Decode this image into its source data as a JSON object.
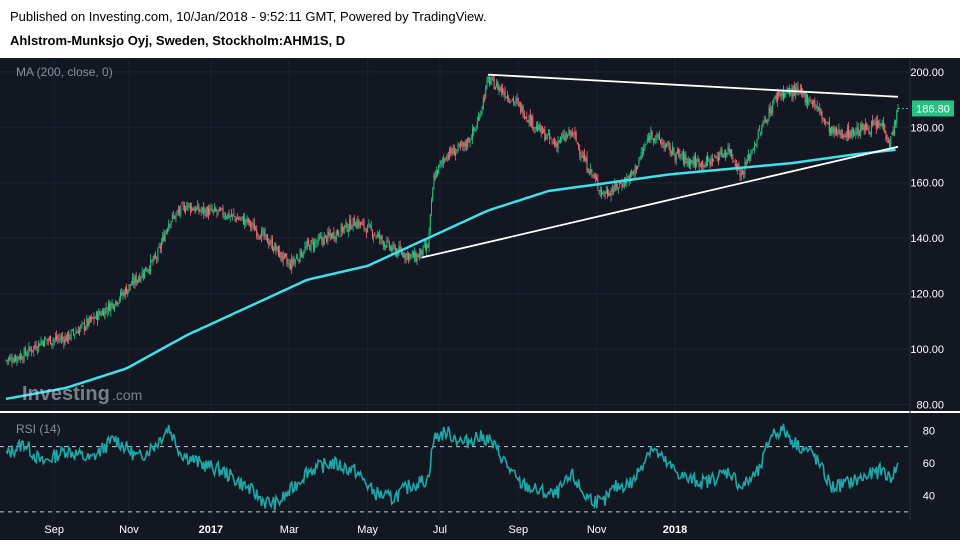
{
  "header": {
    "published": "Published on Investing.com, 10/Jan/2018 - 9:52:11 GMT, Powered by TradingView.",
    "title": "Ahlstrom-Munksjo Oyj, Sweden, Stockholm:AHM1S, D"
  },
  "watermark": {
    "brand": "Investing",
    "suffix": ".com"
  },
  "colors": {
    "background": "#131722",
    "up": "#26c281",
    "down": "#f0727a",
    "ma": "#3ee0ea",
    "rsi": "#1fa7a7",
    "trendline": "#ffffff",
    "price_label_bg": "#26c281"
  },
  "chart_data": [
    {
      "type": "candlestick",
      "indicator_label": "MA (200, close, 0)",
      "last_price": "186.80",
      "ylim": [
        78,
        205
      ],
      "y_ticks": [
        "80.00",
        "100.00",
        "120.00",
        "140.00",
        "160.00",
        "180.00",
        "200.00"
      ],
      "x_ticks": [
        "Sep",
        "Nov",
        "2017",
        "Mar",
        "May",
        "Jul",
        "Sep",
        "Nov",
        "2018"
      ],
      "price_anchors": [
        [
          0,
          96
        ],
        [
          15,
          98
        ],
        [
          30,
          103
        ],
        [
          50,
          104
        ],
        [
          70,
          110
        ],
        [
          90,
          117
        ],
        [
          110,
          126
        ],
        [
          125,
          133
        ],
        [
          135,
          146
        ],
        [
          150,
          152
        ],
        [
          160,
          150
        ],
        [
          180,
          149
        ],
        [
          200,
          146
        ],
        [
          220,
          138
        ],
        [
          235,
          130
        ],
        [
          250,
          137
        ],
        [
          270,
          141
        ],
        [
          290,
          146
        ],
        [
          305,
          142
        ],
        [
          320,
          136
        ],
        [
          340,
          133
        ],
        [
          350,
          137
        ],
        [
          355,
          162
        ],
        [
          365,
          170
        ],
        [
          380,
          173
        ],
        [
          390,
          180
        ],
        [
          400,
          197
        ],
        [
          410,
          194
        ],
        [
          425,
          188
        ],
        [
          440,
          180
        ],
        [
          455,
          174
        ],
        [
          470,
          178
        ],
        [
          480,
          168
        ],
        [
          495,
          156
        ],
        [
          505,
          158
        ],
        [
          520,
          163
        ],
        [
          535,
          178
        ],
        [
          550,
          172
        ],
        [
          565,
          168
        ],
        [
          580,
          167
        ],
        [
          600,
          172
        ],
        [
          610,
          163
        ],
        [
          625,
          178
        ],
        [
          640,
          192
        ],
        [
          655,
          193
        ],
        [
          670,
          189
        ],
        [
          685,
          178
        ],
        [
          700,
          178
        ],
        [
          715,
          180
        ],
        [
          728,
          181
        ],
        [
          733,
          174
        ],
        [
          740,
          186
        ]
      ],
      "ma_anchors": [
        [
          0,
          82
        ],
        [
          50,
          86
        ],
        [
          100,
          93
        ],
        [
          150,
          105
        ],
        [
          200,
          115
        ],
        [
          250,
          125
        ],
        [
          300,
          130
        ],
        [
          350,
          140
        ],
        [
          400,
          150
        ],
        [
          450,
          157
        ],
        [
          500,
          160
        ],
        [
          550,
          163
        ],
        [
          600,
          165
        ],
        [
          650,
          167
        ],
        [
          700,
          170
        ],
        [
          740,
          172
        ]
      ],
      "trendlines": [
        {
          "from": [
            400,
            199
          ],
          "to": [
            740,
            191
          ]
        },
        {
          "from": [
            345,
            133
          ],
          "to": [
            740,
            173
          ]
        }
      ]
    },
    {
      "type": "line",
      "indicator_label": "RSI (14)",
      "ylim": [
        25,
        90
      ],
      "y_ticks": [
        "40",
        "60",
        "80"
      ],
      "levels": [
        30,
        70
      ],
      "rsi_anchors": [
        [
          0,
          65
        ],
        [
          15,
          72
        ],
        [
          30,
          60
        ],
        [
          50,
          68
        ],
        [
          70,
          62
        ],
        [
          90,
          75
        ],
        [
          110,
          63
        ],
        [
          125,
          72
        ],
        [
          135,
          82
        ],
        [
          145,
          66
        ],
        [
          160,
          60
        ],
        [
          180,
          55
        ],
        [
          200,
          45
        ],
        [
          215,
          36
        ],
        [
          225,
          35
        ],
        [
          235,
          42
        ],
        [
          250,
          55
        ],
        [
          270,
          60
        ],
        [
          290,
          55
        ],
        [
          305,
          42
        ],
        [
          320,
          38
        ],
        [
          335,
          46
        ],
        [
          350,
          50
        ],
        [
          355,
          75
        ],
        [
          365,
          79
        ],
        [
          380,
          72
        ],
        [
          390,
          76
        ],
        [
          400,
          75
        ],
        [
          410,
          65
        ],
        [
          425,
          48
        ],
        [
          440,
          43
        ],
        [
          455,
          40
        ],
        [
          470,
          52
        ],
        [
          480,
          40
        ],
        [
          495,
          35
        ],
        [
          505,
          45
        ],
        [
          520,
          48
        ],
        [
          535,
          70
        ],
        [
          550,
          58
        ],
        [
          565,
          50
        ],
        [
          580,
          48
        ],
        [
          600,
          55
        ],
        [
          610,
          45
        ],
        [
          625,
          55
        ],
        [
          635,
          78
        ],
        [
          645,
          80
        ],
        [
          655,
          72
        ],
        [
          670,
          65
        ],
        [
          685,
          45
        ],
        [
          700,
          48
        ],
        [
          715,
          52
        ],
        [
          728,
          56
        ],
        [
          733,
          50
        ],
        [
          740,
          58
        ]
      ]
    }
  ]
}
